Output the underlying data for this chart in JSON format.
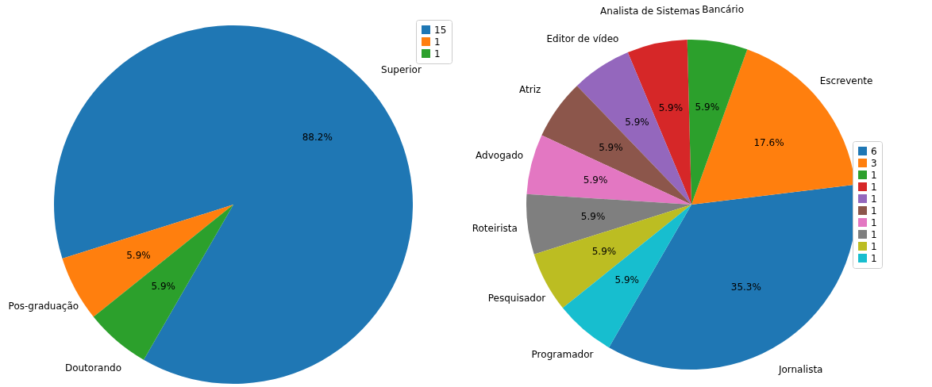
{
  "chart_data": [
    {
      "type": "pie",
      "categories": [
        "Superior",
        "Pos-graduação",
        "Doutorando"
      ],
      "values": [
        88.2,
        5.9,
        5.9
      ],
      "colors": [
        "#1f77b4",
        "#ff7f0e",
        "#2ca02c"
      ],
      "value_labels": [
        "88.2%",
        "5.9%",
        "5.9%"
      ],
      "annotations": [
        "15",
        "1",
        "1"
      ]
    },
    {
      "type": "pie",
      "categories": [
        "Jornalista",
        "Escrevente",
        "Bancário",
        "Analista de Sistemas",
        "Editor de vídeo",
        "Atriz",
        "Advogado",
        "Roteirista",
        "Pesquisador",
        "Programador"
      ],
      "values": [
        35.3,
        17.6,
        5.9,
        5.9,
        5.9,
        5.9,
        5.9,
        5.9,
        5.9,
        5.9
      ],
      "colors": [
        "#1f77b4",
        "#ff7f0e",
        "#2ca02c",
        "#d62728",
        "#9467bd",
        "#8c564b",
        "#e377c2",
        "#7f7f7f",
        "#bcbd22",
        "#17becf"
      ],
      "value_labels": [
        "35.3%",
        "17.6%",
        "5.9%",
        "5.9%",
        "5.9%",
        "5.9%",
        "5.9%",
        "5.9%",
        "5.9%",
        "5.9%"
      ],
      "annotations": [
        "6",
        "3",
        "1",
        "1",
        "1",
        "1",
        "1",
        "1",
        "1",
        "1"
      ]
    }
  ]
}
